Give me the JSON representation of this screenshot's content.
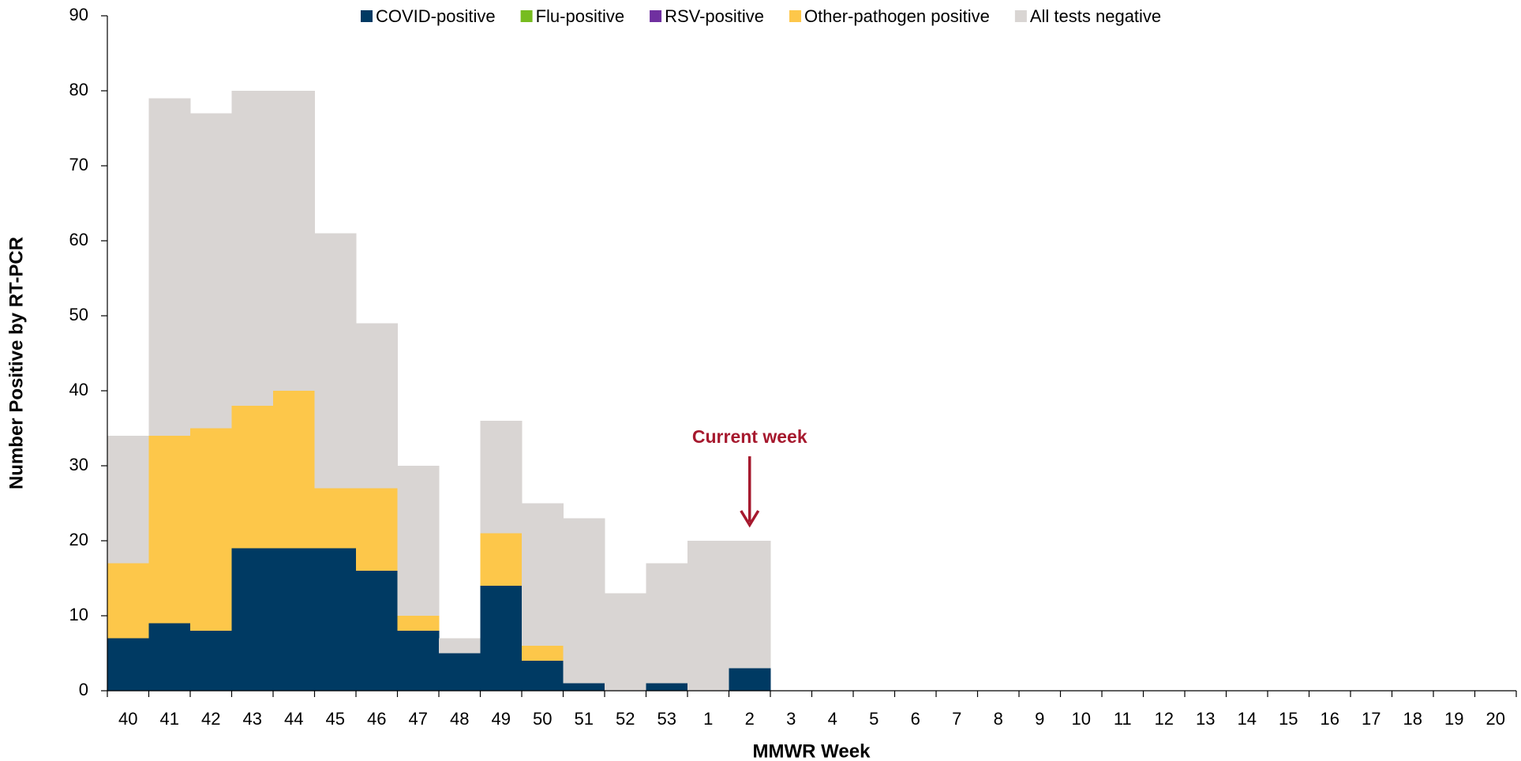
{
  "chart_data": {
    "type": "stacked_bar",
    "xlabel": "MMWR Week",
    "ylabel": "Number Positive by RT-PCR",
    "categories": [
      "40",
      "41",
      "42",
      "43",
      "44",
      "45",
      "46",
      "47",
      "48",
      "49",
      "50",
      "51",
      "52",
      "53",
      "1",
      "2",
      "3",
      "4",
      "5",
      "6",
      "7",
      "8",
      "9",
      "10",
      "11",
      "12",
      "13",
      "14",
      "15",
      "16",
      "17",
      "18",
      "19",
      "20"
    ],
    "series": [
      {
        "name": "COVID-positive",
        "color": "#003a63",
        "values": [
          7,
          9,
          8,
          19,
          19,
          19,
          16,
          8,
          5,
          14,
          4,
          1,
          0,
          1,
          0,
          3,
          null,
          null,
          null,
          null,
          null,
          null,
          null,
          null,
          null,
          null,
          null,
          null,
          null,
          null,
          null,
          null,
          null,
          null
        ]
      },
      {
        "name": "Flu-positive",
        "color": "#77bc1f",
        "values": [
          0,
          0,
          0,
          0,
          0,
          0,
          0,
          0,
          0,
          0,
          0,
          0,
          0,
          0,
          0,
          0,
          null,
          null,
          null,
          null,
          null,
          null,
          null,
          null,
          null,
          null,
          null,
          null,
          null,
          null,
          null,
          null,
          null,
          null
        ]
      },
      {
        "name": "RSV-positive",
        "color": "#7030a0",
        "values": [
          0,
          0,
          0,
          0,
          0,
          0,
          0,
          0,
          0,
          0,
          0,
          0,
          0,
          0,
          0,
          0,
          null,
          null,
          null,
          null,
          null,
          null,
          null,
          null,
          null,
          null,
          null,
          null,
          null,
          null,
          null,
          null,
          null,
          null
        ]
      },
      {
        "name": "Other-pathogen positive",
        "color": "#fdc74a",
        "values": [
          10,
          25,
          27,
          19,
          21,
          8,
          11,
          2,
          0,
          7,
          2,
          0,
          0,
          0,
          0,
          0,
          null,
          null,
          null,
          null,
          null,
          null,
          null,
          null,
          null,
          null,
          null,
          null,
          null,
          null,
          null,
          null,
          null,
          null
        ]
      },
      {
        "name": "All tests negative",
        "color": "#d9d5d3",
        "values": [
          17,
          45,
          42,
          42,
          40,
          34,
          22,
          20,
          2,
          15,
          19,
          22,
          13,
          16,
          20,
          17,
          null,
          null,
          null,
          null,
          null,
          null,
          null,
          null,
          null,
          null,
          null,
          null,
          null,
          null,
          null,
          null,
          null,
          null
        ]
      }
    ],
    "ylim": [
      0,
      90
    ],
    "yticks": [
      0,
      10,
      20,
      30,
      40,
      50,
      60,
      70,
      80,
      90
    ],
    "annotation": "Current week",
    "annotation_color": "#a6192e",
    "legend": "top"
  }
}
